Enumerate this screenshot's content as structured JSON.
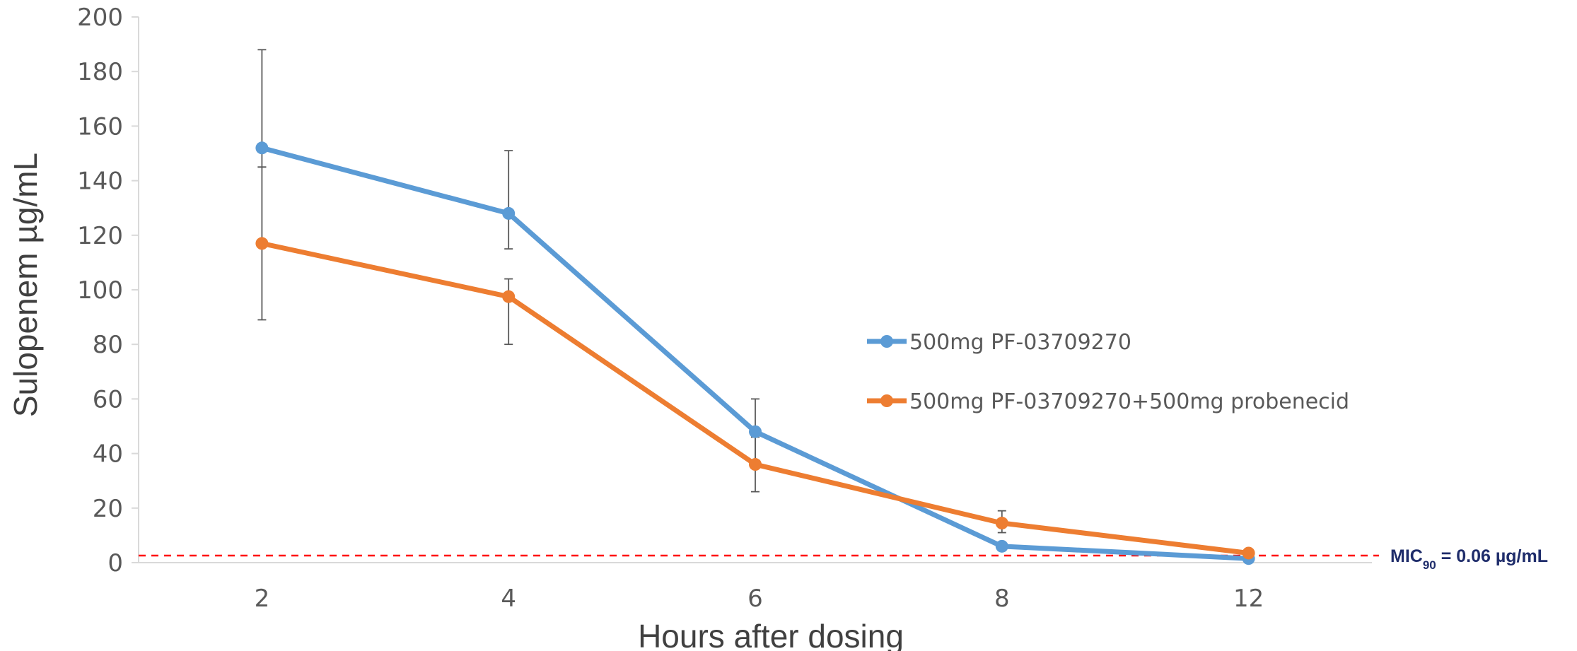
{
  "chart_data": {
    "type": "line",
    "categories": [
      "2",
      "4",
      "6",
      "8",
      "12"
    ],
    "xlabel": "Hours after dosing",
    "ylabel": "Sulopenem µg/mL",
    "ylim": [
      0,
      200
    ],
    "yticks": [
      0,
      20,
      40,
      60,
      80,
      100,
      120,
      140,
      160,
      180,
      200
    ],
    "grid": false,
    "legend_position": "center-right",
    "series": [
      {
        "name": "500mg PF-03709270",
        "color": "#5b9bd5",
        "values": [
          152,
          128,
          48,
          6,
          1.5
        ],
        "error_upper": [
          188,
          151,
          60,
          null,
          null
        ],
        "error_lower": [
          145,
          115,
          36,
          null,
          null
        ]
      },
      {
        "name": "500mg PF-03709270+500mg probenecid",
        "color": "#ed7d31",
        "values": [
          117,
          97.5,
          36,
          14.5,
          3.5
        ],
        "error_upper": [
          145,
          104,
          46,
          19,
          null
        ],
        "error_lower": [
          89,
          80,
          26,
          11,
          null
        ]
      }
    ],
    "reference_line": {
      "value": 2.6,
      "color": "#ff0000",
      "style": "dashed",
      "label_prefix": "MIC",
      "label_subscript": "90",
      "label_suffix": " = 0.06 µg/mL",
      "label_color": "#1f2d6b"
    }
  }
}
